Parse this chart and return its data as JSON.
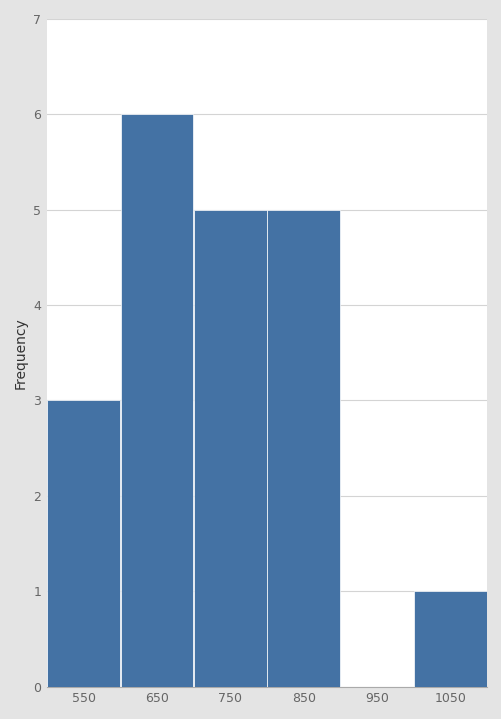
{
  "bin_edges": [
    500,
    600,
    700,
    800,
    900,
    1000,
    1100
  ],
  "frequencies": [
    3,
    6,
    5,
    5,
    0,
    1
  ],
  "bar_color": "#4472a4",
  "bar_edgecolor": "#ffffff",
  "xlabel": "",
  "ylabel": "Frequency",
  "ylim": [
    0,
    7
  ],
  "yticks": [
    0,
    1,
    2,
    3,
    4,
    5,
    6,
    7
  ],
  "xticks": [
    550,
    650,
    750,
    850,
    950,
    1050
  ],
  "xlim": [
    500,
    1100
  ],
  "grid_color": "#d4d4d4",
  "background_color": "#ffffff",
  "figure_facecolor": "#e4e4e4",
  "ylabel_fontsize": 10,
  "tick_fontsize": 9,
  "bar_linewidth": 0.5
}
